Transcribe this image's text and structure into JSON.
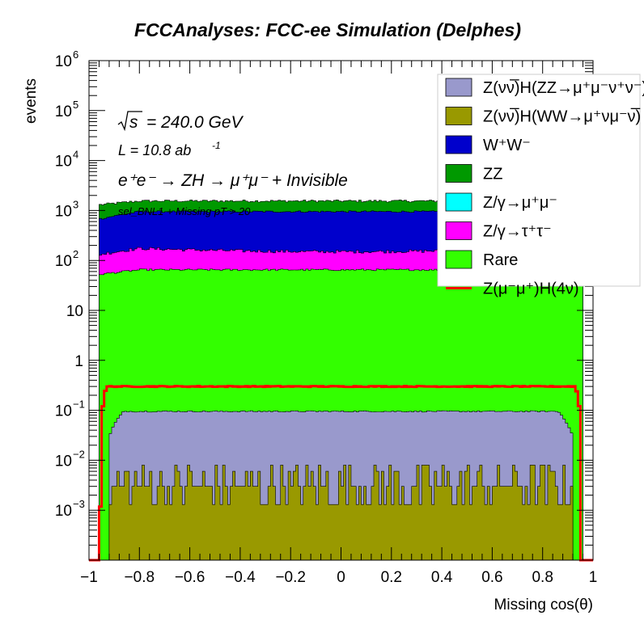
{
  "chart_data": {
    "type": "area",
    "title": "FCCAnalyses: FCC-ee Simulation (Delphes)",
    "xlabel": "Missing cos(θ)",
    "ylabel": "events",
    "xlim": [
      -1,
      1
    ],
    "ylim": [
      0.0001,
      1000000
    ],
    "log_y": true,
    "grid": false,
    "stacked": true,
    "legend_position": "top-right",
    "x_ticks": [
      "−1",
      "−0.8",
      "−0.6",
      "−0.4",
      "−0.2",
      "0",
      "0.2",
      "0.4",
      "0.6",
      "0.8",
      "1"
    ],
    "y_ticks": [
      {
        "value": 0.001,
        "base": "10",
        "exp": "−3"
      },
      {
        "value": 0.01,
        "base": "10",
        "exp": "−2"
      },
      {
        "value": 0.1,
        "base": "10",
        "exp": "−1"
      },
      {
        "value": 1,
        "base": "1",
        "exp": ""
      },
      {
        "value": 10,
        "base": "10",
        "exp": ""
      },
      {
        "value": 100,
        "base": "10",
        "exp": "2"
      },
      {
        "value": 1000,
        "base": "10",
        "exp": "3"
      },
      {
        "value": 10000,
        "base": "10",
        "exp": "4"
      },
      {
        "value": 100000,
        "base": "10",
        "exp": "5"
      },
      {
        "value": 1000000,
        "base": "10",
        "exp": "6"
      }
    ],
    "annotations": {
      "sqrt_s": "= 240.0 GeV",
      "lumi_prefix": "L = 10.8 ab",
      "lumi_exp": "-1",
      "process": "e⁺e⁻ → ZH → μ⁺μ⁻ + Invisible",
      "selection": "sel_BNL1 + Missing pT > 20"
    },
    "x_support": [
      -0.96,
      0.96
    ],
    "series": [
      {
        "name": "Z(νν̅)H(ZZ→μ⁺μ⁻ν⁺ν⁻)",
        "color": "#9999cc",
        "top": 0.095
      },
      {
        "name": "Z(νν̅)H(WW→μ⁺νμ⁻ν̅)",
        "color": "#999900",
        "top": 0.003
      },
      {
        "name": "W⁺W⁻",
        "color": "#0000cc",
        "top": 950
      },
      {
        "name": "ZZ",
        "color": "#009900",
        "top": 1550
      },
      {
        "name": "Z/γ→μ⁺μ⁻",
        "color": "#00ffff",
        "top": 0
      },
      {
        "name": "Z/γ→τ⁺τ⁻",
        "color": "#ff00ff",
        "top": 150
      },
      {
        "name": "Rare",
        "color": "#33ff00",
        "top": 65
      },
      {
        "name": "Z(μ⁻μ⁺)H(4ν)",
        "color": "#ff0000",
        "style": "line",
        "level": 0.3
      }
    ]
  }
}
